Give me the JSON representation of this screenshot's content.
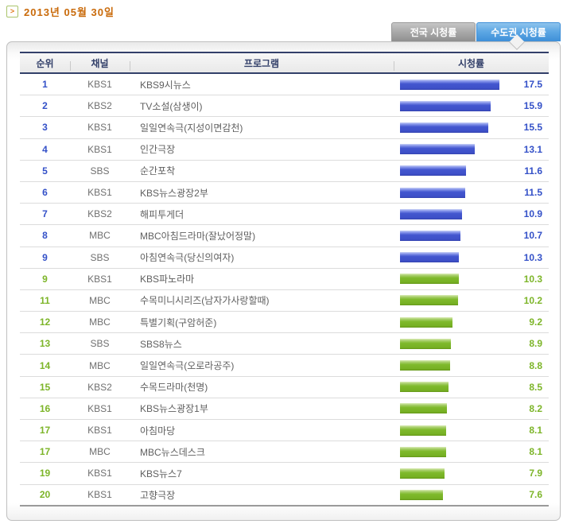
{
  "header": {
    "date_label": "2013년 05월 30일"
  },
  "tabs": [
    {
      "label": "전국 시청률",
      "active": false
    },
    {
      "label": "수도권 시청률",
      "active": true
    }
  ],
  "table": {
    "columns": {
      "rank": "순위",
      "channel": "채널",
      "program": "프로그램",
      "rating": "시청률"
    },
    "max_rating": 17.5,
    "rows": [
      {
        "rank": "1",
        "channel": "KBS1",
        "program": "KBS9시뉴스",
        "rating": 17.5,
        "tier": "blue"
      },
      {
        "rank": "2",
        "channel": "KBS2",
        "program": "TV소설(삼생이)",
        "rating": 15.9,
        "tier": "blue"
      },
      {
        "rank": "3",
        "channel": "KBS1",
        "program": "일일연속극(지성이면감천)",
        "rating": 15.5,
        "tier": "blue"
      },
      {
        "rank": "4",
        "channel": "KBS1",
        "program": "인간극장",
        "rating": 13.1,
        "tier": "blue"
      },
      {
        "rank": "5",
        "channel": "SBS",
        "program": "순간포착",
        "rating": 11.6,
        "tier": "blue"
      },
      {
        "rank": "6",
        "channel": "KBS1",
        "program": "KBS뉴스광장2부",
        "rating": 11.5,
        "tier": "blue"
      },
      {
        "rank": "7",
        "channel": "KBS2",
        "program": "해피투게더",
        "rating": 10.9,
        "tier": "blue"
      },
      {
        "rank": "8",
        "channel": "MBC",
        "program": "MBC아침드라마(잘났어정말)",
        "rating": 10.7,
        "tier": "blue"
      },
      {
        "rank": "9",
        "channel": "SBS",
        "program": "아침연속극(당신의여자)",
        "rating": 10.3,
        "tier": "blue"
      },
      {
        "rank": "9",
        "channel": "KBS1",
        "program": "KBS파노라마",
        "rating": 10.3,
        "tier": "green"
      },
      {
        "rank": "11",
        "channel": "MBC",
        "program": "수목미니시리즈(남자가사랑할때)",
        "rating": 10.2,
        "tier": "green"
      },
      {
        "rank": "12",
        "channel": "MBC",
        "program": "특별기획(구암허준)",
        "rating": 9.2,
        "tier": "green"
      },
      {
        "rank": "13",
        "channel": "SBS",
        "program": "SBS8뉴스",
        "rating": 8.9,
        "tier": "green"
      },
      {
        "rank": "14",
        "channel": "MBC",
        "program": "일일연속극(오로라공주)",
        "rating": 8.8,
        "tier": "green"
      },
      {
        "rank": "15",
        "channel": "KBS2",
        "program": "수목드라마(천명)",
        "rating": 8.5,
        "tier": "green"
      },
      {
        "rank": "16",
        "channel": "KBS1",
        "program": "KBS뉴스광장1부",
        "rating": 8.2,
        "tier": "green"
      },
      {
        "rank": "17",
        "channel": "KBS1",
        "program": "아침마당",
        "rating": 8.1,
        "tier": "green"
      },
      {
        "rank": "17",
        "channel": "MBC",
        "program": "MBC뉴스데스크",
        "rating": 8.1,
        "tier": "green"
      },
      {
        "rank": "19",
        "channel": "KBS1",
        "program": "KBS뉴스7",
        "rating": 7.9,
        "tier": "green"
      },
      {
        "rank": "20",
        "channel": "KBS1",
        "program": "고향극장",
        "rating": 7.6,
        "tier": "green"
      }
    ]
  },
  "icons": {
    "date_nav_arrow": ">"
  },
  "colors": {
    "date_text": "#C96A0A",
    "active_tab_blue": "#3E8FD8",
    "inactive_tab_gray": "#9A9A9A",
    "bar_blue": "#3E50C8",
    "bar_green": "#76B023",
    "rank_blue": "#3451C8",
    "rank_green": "#7DB529",
    "header_navy": "#33406A"
  }
}
